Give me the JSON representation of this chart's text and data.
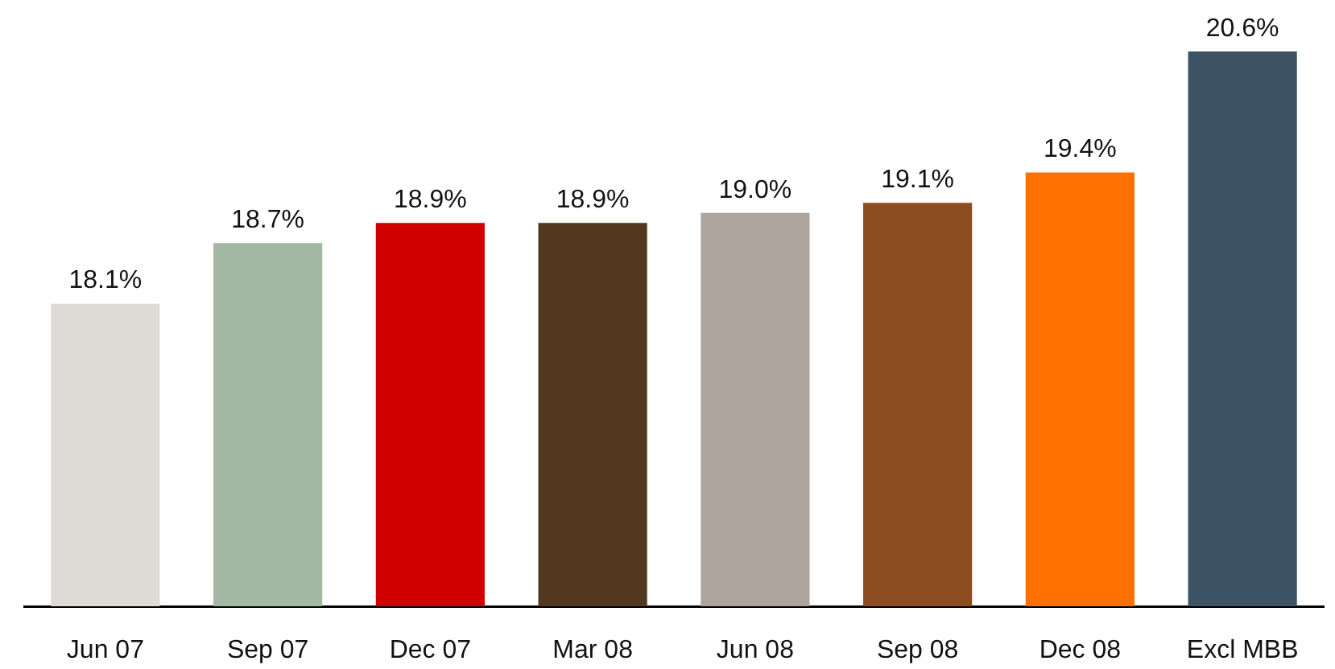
{
  "chart_data": {
    "type": "bar",
    "categories": [
      "Jun 07",
      "Sep 07",
      "Dec 07",
      "Mar 08",
      "Jun 08",
      "Sep 08",
      "Dec 08",
      "Excl MBB"
    ],
    "values": [
      18.1,
      18.7,
      18.9,
      18.9,
      19.0,
      19.1,
      19.4,
      20.6
    ],
    "colors": [
      "#dcdbd6",
      "#a3b8a3",
      "#d10000",
      "#52381e",
      "#aea59f",
      "#8b4c20",
      "#ff7000",
      "#3d5262"
    ],
    "value_labels": [
      "18.1%",
      "18.7%",
      "18.9%",
      "18.9%",
      "19.0%",
      "19.1%",
      "19.4%",
      "20.6%"
    ],
    "tick_labels": "x"
  }
}
